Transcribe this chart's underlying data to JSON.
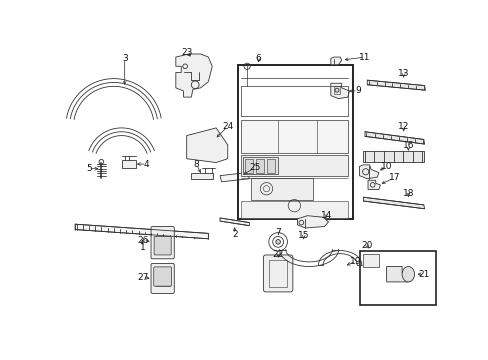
{
  "background_color": "#ffffff",
  "figure_size": [
    4.89,
    3.6
  ],
  "dpi": 100,
  "line_color": "#333333",
  "lw": 0.6
}
